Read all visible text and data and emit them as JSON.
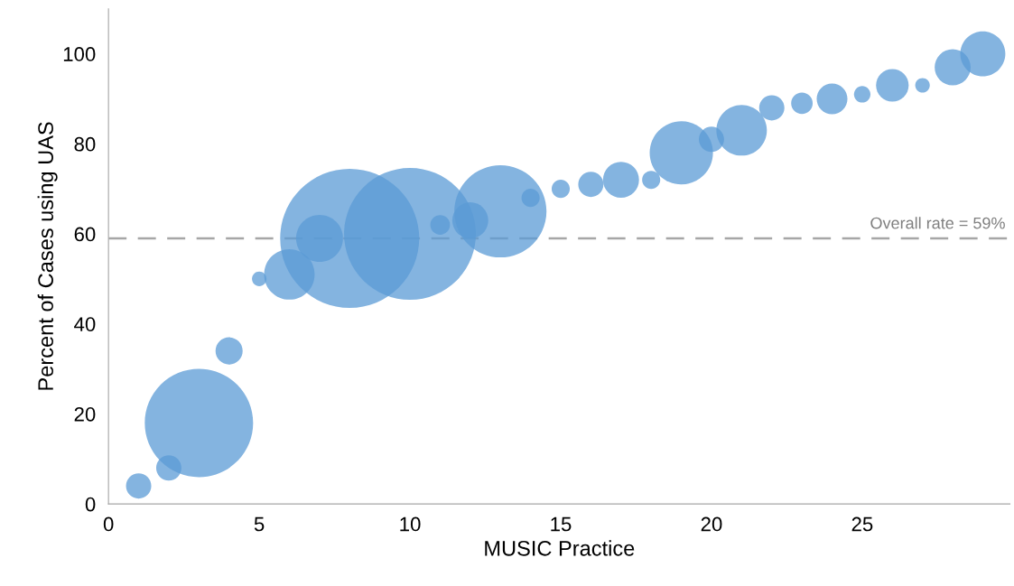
{
  "chart_data": {
    "type": "bubble",
    "xlabel": "MUSIC Practice",
    "ylabel": "Percent of Cases using UAS",
    "x": [
      1,
      2,
      3,
      4,
      5,
      6,
      7,
      8,
      10,
      11,
      12,
      13,
      14,
      15,
      16,
      17,
      18,
      19,
      20,
      21,
      22,
      23,
      24,
      25,
      26,
      27,
      28,
      29
    ],
    "values": [
      4,
      8,
      18,
      34,
      50,
      51,
      59,
      59,
      60,
      62,
      63,
      65,
      68,
      70,
      71,
      72,
      72,
      78,
      81,
      83,
      88,
      89,
      90,
      91,
      93,
      93,
      97,
      100
    ],
    "sizes": [
      0.033,
      0.033,
      0.607,
      0.038,
      0.011,
      0.132,
      0.114,
      1,
      0.899,
      0.02,
      0.067,
      0.439,
      0.017,
      0.017,
      0.033,
      0.067,
      0.017,
      0.207,
      0.033,
      0.132,
      0.033,
      0.024,
      0.049,
      0.014,
      0.055,
      0.011,
      0.067,
      0.105
    ],
    "color": "#5b9bd5",
    "xlim": [
      0,
      29.9
    ],
    "xticks": [
      0,
      5,
      10,
      15,
      20,
      25
    ],
    "ylim": [
      0,
      110
    ],
    "yticks": [
      0,
      20,
      40,
      60,
      80,
      100
    ],
    "ref_lines": [
      {
        "axis": "y",
        "value": 59,
        "label": "Overall rate = 59%",
        "color": "#a6a6a6",
        "line_style": "dashed"
      }
    ],
    "grid": false,
    "legend": false
  }
}
